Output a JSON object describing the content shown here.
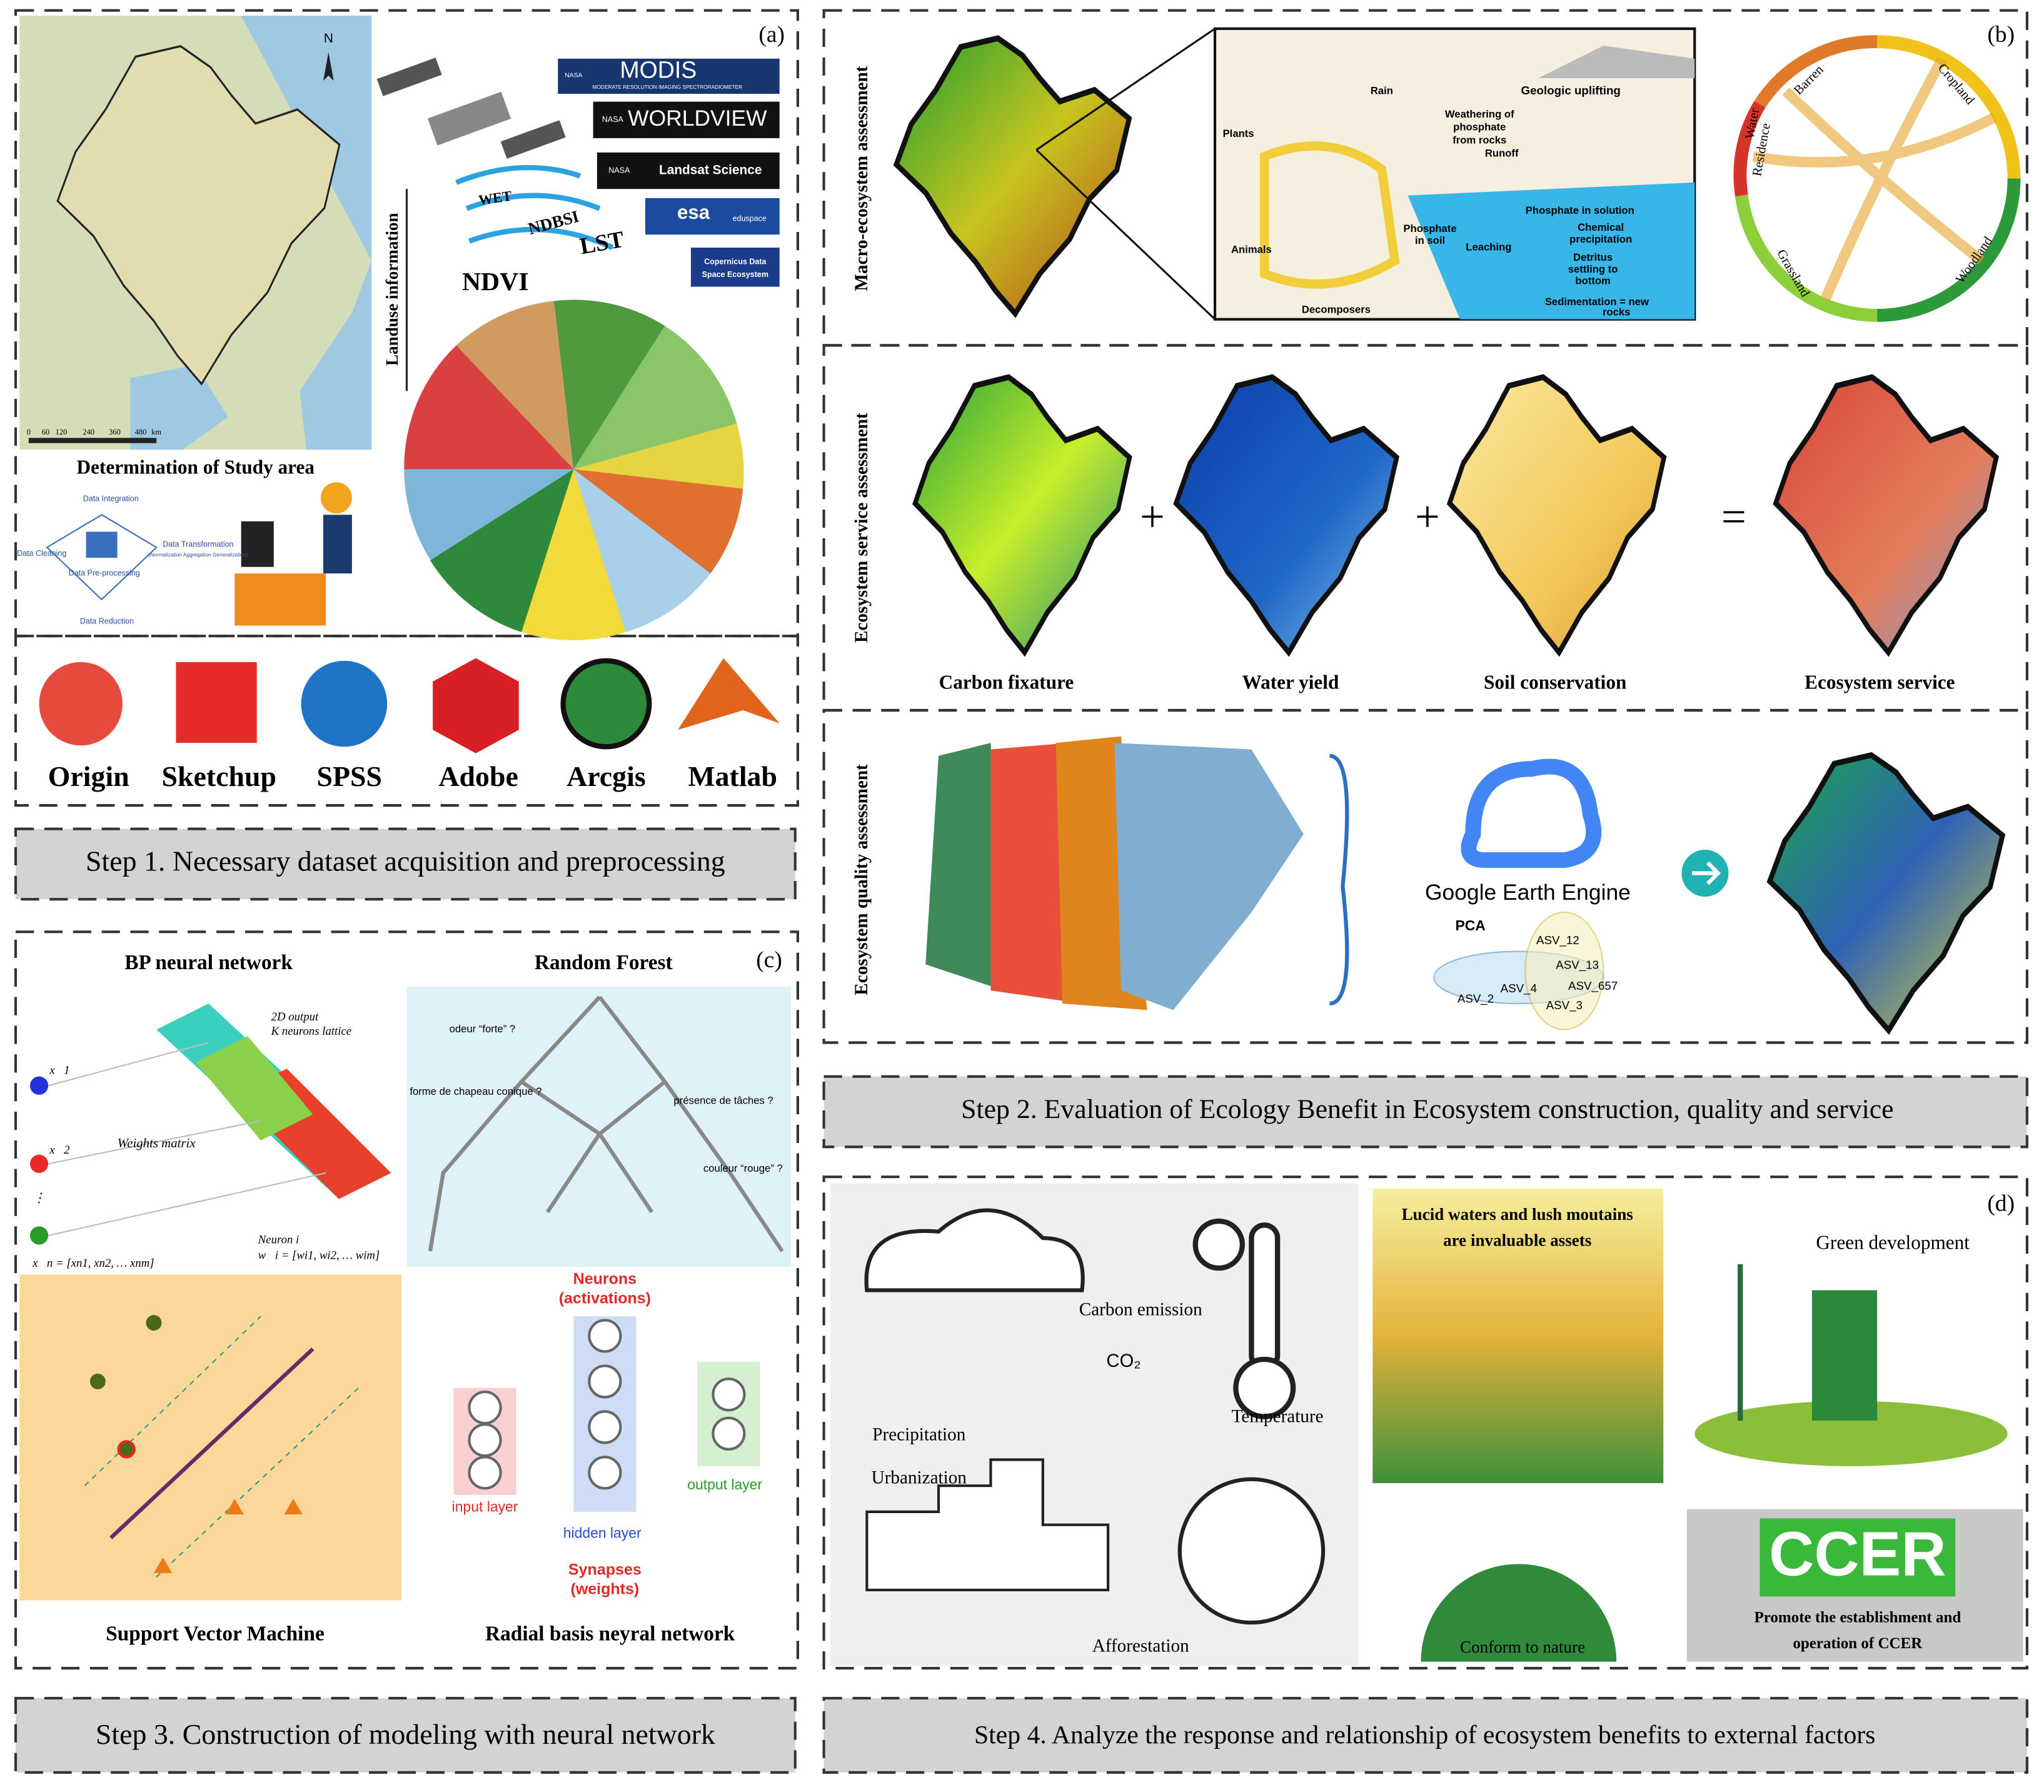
{
  "panel_a": {
    "label": "(a)",
    "north": "N",
    "scale_labels": [
      "0",
      "60",
      "120",
      "240",
      "360",
      "480",
      "km"
    ],
    "study_area_caption": "Determination of Study area",
    "nasa": "NASA",
    "modis": "MODIS",
    "modis_subtitle": "MODERATE RESOLUTION IMAGING SPECTRORADIOMETER",
    "worldview": "WORLDVIEW",
    "landsat": "Landsat Science",
    "esa": "esa",
    "eduspace": "eduspace",
    "copernicus": [
      "Copernicus Data",
      "Space Ecosystem"
    ],
    "indices": [
      "WET",
      "NDBSI",
      "LST",
      "NDVI"
    ],
    "landuse_axis": "Landuse information",
    "preprocessing": {
      "integration": "Data Integration",
      "transformation": "Data Transformation",
      "transformation_note": "(Normalization Aggregation Generalization)",
      "center": "Data Pre-processing",
      "cleaning": "Data Cleaning",
      "reduction": "Data Reduction"
    },
    "software": [
      "Origin",
      "Sketchup",
      "SPSS",
      "Adobe",
      "Arcgis",
      "Matlab"
    ],
    "step": "Step 1. Necessary dataset acquisition and preprocessing"
  },
  "panel_b": {
    "label": "(b)",
    "macro_title": "Macro-ecosystem assessment",
    "cycle": {
      "rain": "Rain",
      "uplifting": "Geologic uplifting",
      "plants": "Plants",
      "weathering": [
        "Weathering of",
        "phosphate",
        "from rocks"
      ],
      "runoff": "Runoff",
      "solution": "Phosphate in solution",
      "animals": "Animals",
      "soil": [
        "Phosphate",
        "in soil"
      ],
      "leaching": "Leaching",
      "precipitation": [
        "Chemical",
        "precipitation"
      ],
      "detritus": [
        "Detritus",
        "settling to",
        "bottom"
      ],
      "decomposers": "Decomposers",
      "sedimentation": [
        "Sedimentation = new",
        "rocks"
      ]
    },
    "chord_labels": [
      "Barren",
      "Cropland",
      "Water",
      "Residence",
      "Grassland",
      "Woodland"
    ],
    "service_title": "Ecosystem service assessment",
    "service_maps": [
      "Carbon fixature",
      "Water yield",
      "Soil conservation",
      "Ecosystem service"
    ],
    "operators": [
      "+",
      "+",
      "="
    ],
    "quality_title": "Ecosystem quality assessment",
    "gee": "Google Earth Engine",
    "pca": "PCA",
    "asv": [
      "ASV_12",
      "ASV_13",
      "ASV_657",
      "ASV_2",
      "ASV_4",
      "ASV_3"
    ],
    "step": "Step 2. Evaluation of  Ecology Benefit  in Ecosystem construction, quality and service"
  },
  "panel_c": {
    "label": "(c)",
    "bp_title": "BP neural network",
    "rf_title": "Random Forest",
    "bp_texts": [
      "2D output",
      "K neurons lattice",
      "Weights matrix",
      "Neuron i",
      "w⃗i = [wi1, wi2, … wim]",
      "x⃗1",
      "x⃗2",
      "⋮",
      "x⃗n = [xn1, xn2, … xnm]"
    ],
    "rf_questions": [
      "odeur “forte” ?",
      "forme de chapeau conique ?",
      "présence de tâches ?",
      "couleur “rouge” ?"
    ],
    "rbf": {
      "neurons": "Neurons",
      "activations": "(activations)",
      "input": "input layer",
      "hidden": "hidden layer",
      "output": "output layer",
      "synapses": "Synapses",
      "weights": "(weights)"
    },
    "svm_title": "Support Vector Machine",
    "rbf_title": "Radial basis neyral network",
    "step": "Step 3. Construction of modeling with neural network"
  },
  "panel_d": {
    "label": "(d)",
    "precipitation": "Precipitation",
    "carbon_emission": "Carbon emission",
    "co2": "CO₂",
    "temperature": "Temperature",
    "urbanization": "Urbanization",
    "afforestation": "Afforestation",
    "lucid": [
      "Lucid waters and lush moutains",
      "are invaluable assets"
    ],
    "green": "Green development",
    "conform": "Conform to nature",
    "ccer": "CCER",
    "ccer_caption": [
      "Promote the establishment and",
      "operation of CCER"
    ],
    "step": "Step 4. Analyze the response and relationship of ecosystem benefits to external factors"
  }
}
